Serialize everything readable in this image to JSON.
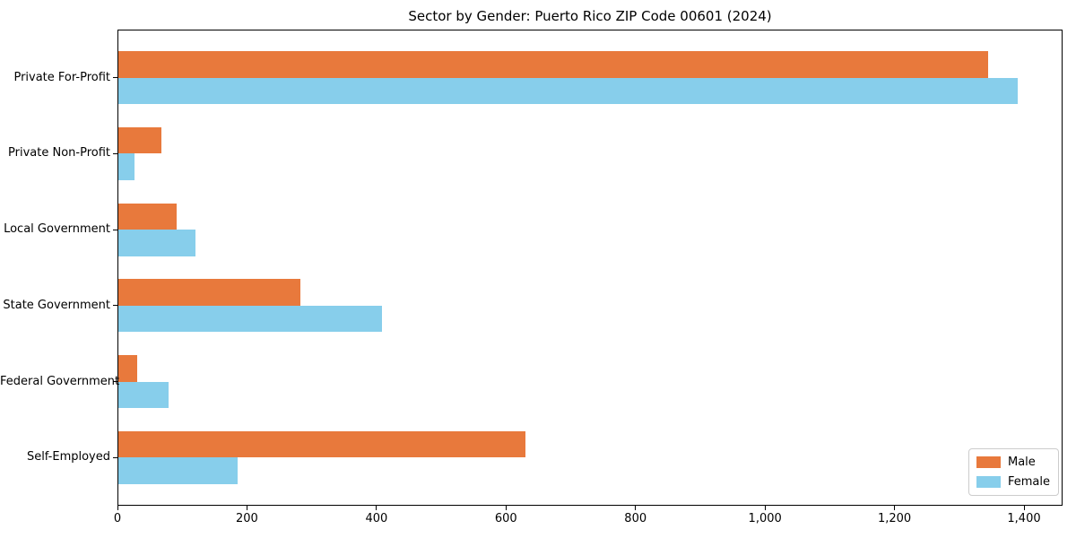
{
  "figure": {
    "title": "Sector by Gender: Puerto Rico ZIP Code 00601 (2024)"
  },
  "chart_data": {
    "type": "bar",
    "orientation": "horizontal",
    "title": "Sector by Gender: Puerto Rico ZIP Code 00601 (2024)",
    "categories": [
      "Private For-Profit",
      "Private Non-Profit",
      "Local Government",
      "State Government",
      "Federal Government",
      "Self-Employed"
    ],
    "series": [
      {
        "name": "Male",
        "color": "#E8793C",
        "values": [
          1344,
          68,
          92,
          283,
          30,
          630
        ]
      },
      {
        "name": "Female",
        "color": "#87CEEB",
        "values": [
          1390,
          26,
          120,
          409,
          79,
          185
        ]
      }
    ],
    "xlabel": "",
    "ylabel": "",
    "xlim": [
      0,
      1459.5
    ],
    "x_ticks": [
      0,
      200,
      400,
      600,
      800,
      1000,
      1200,
      1400
    ],
    "x_tick_labels": [
      "0",
      "200",
      "400",
      "600",
      "800",
      "1,000",
      "1,200",
      "1,400"
    ],
    "grid": false,
    "legend": {
      "position": "lower-right",
      "entries": [
        "Male",
        "Female"
      ]
    },
    "axis_color": "#000000",
    "legend_border_color": "#cccccc"
  }
}
